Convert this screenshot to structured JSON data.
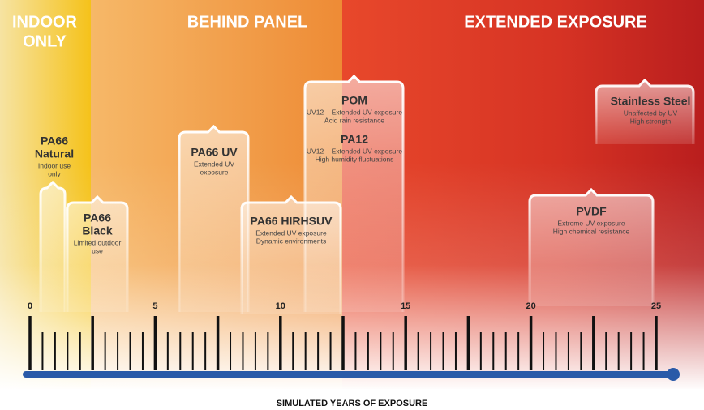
{
  "zones": [
    {
      "title": [
        "INDOOR",
        "ONLY"
      ]
    },
    {
      "title": [
        "BEHIND PANEL"
      ]
    },
    {
      "title": [
        "EXTENDED EXPOSURE"
      ]
    }
  ],
  "materials": [
    {
      "name": [
        "PA66",
        "Natural"
      ],
      "description": [
        "Indoor use",
        "only"
      ]
    },
    {
      "name": [
        "PA66",
        "Black"
      ],
      "description": [
        "Limited outdoor",
        "use"
      ]
    },
    {
      "name": [
        "PA66 UV"
      ],
      "description": [
        "Extended UV",
        "exposure"
      ]
    },
    {
      "name": [
        "PA66 HIRHSUV"
      ],
      "description": [
        "Extended UV exposure",
        "Dynamic environments"
      ]
    },
    {
      "name": [
        "POM"
      ],
      "description": [
        "UV12 – Extended UV exposure",
        "Acid rain resistance"
      ]
    },
    {
      "name": [
        "PA12"
      ],
      "description": [
        "UV12 – Extended UV exposure",
        "High humidity fluctuations"
      ]
    },
    {
      "name": [
        "PVDF"
      ],
      "description": [
        "Extreme UV exposure",
        "High chemical resistance"
      ]
    },
    {
      "name": [
        "Stainless Steel"
      ],
      "description": [
        "Unaffected by UV",
        "High strength"
      ]
    }
  ],
  "axis": {
    "label": "SIMULATED YEARS OF EXPOSURE",
    "ticks": [
      0,
      5,
      10,
      15,
      20,
      25
    ]
  }
}
